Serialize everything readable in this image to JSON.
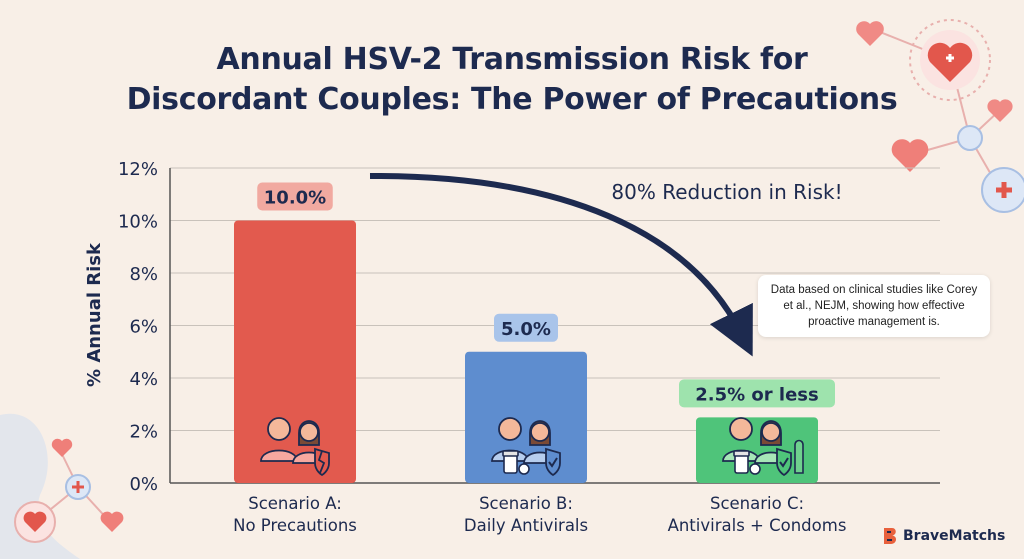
{
  "title_lines": [
    "Annual HSV-2 Transmission Risk for",
    "Discordant Couples: The Power of Precautions"
  ],
  "chart_data": {
    "type": "bar",
    "ylabel": "% Annual Risk",
    "ylim": [
      0,
      12
    ],
    "yticks": [
      "0%",
      "2%",
      "4%",
      "6%",
      "8%",
      "10%",
      "12%"
    ],
    "grid": true,
    "categories": [
      [
        "Scenario A:",
        "No Precautions"
      ],
      [
        "Scenario B:",
        "Daily Antivirals"
      ],
      [
        "Scenario C:",
        "Antivirals + Condoms"
      ]
    ],
    "values": [
      10.0,
      5.0,
      2.5
    ],
    "data_labels": [
      "10.0%",
      "5.0%",
      "2.5% or less"
    ],
    "colors": [
      "#e25a4e",
      "#5e8dcf",
      "#4fc47a"
    ],
    "label_bg": [
      "#f1a9a0",
      "#a9c4ea",
      "#9ee3ad"
    ],
    "annotation": "80% Reduction in Risk!",
    "icons": [
      "couple-broken-shield-icon",
      "couple-pills-shield-icon",
      "couple-pills-shield-condom-icon"
    ]
  },
  "note": "Data based on clinical studies like Corey et al., NEJM, showing how effective proactive management is.",
  "brand": {
    "name": "BraveMatchs",
    "color": "#e8603c",
    "icon": "bravematchs-logo-icon"
  }
}
